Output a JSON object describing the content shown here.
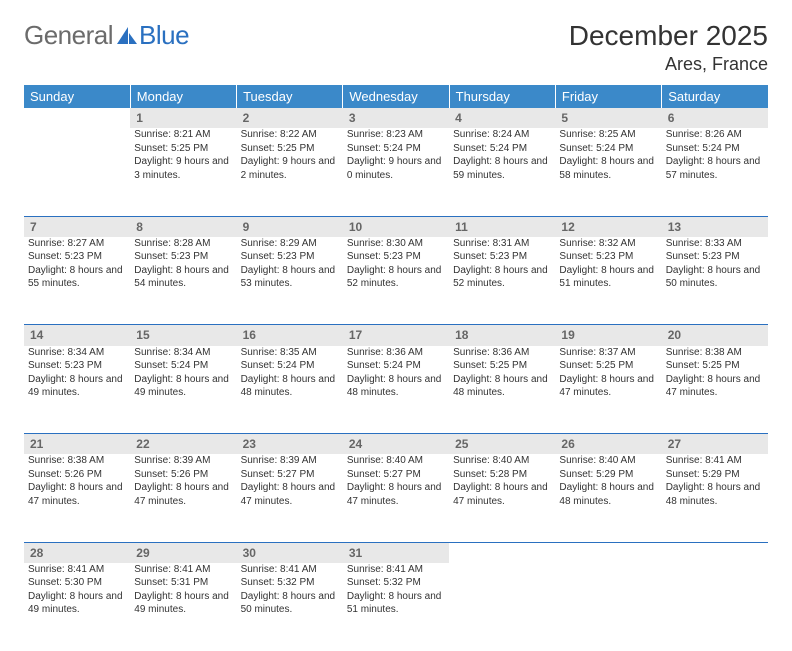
{
  "logo": {
    "textA": "General",
    "textB": "Blue"
  },
  "title": "December 2025",
  "location": "Ares, France",
  "header_bg": "#3b89c9",
  "day_bg": "#e8e8e8",
  "rule_color": "#2a70c0",
  "weekdays": [
    "Sunday",
    "Monday",
    "Tuesday",
    "Wednesday",
    "Thursday",
    "Friday",
    "Saturday"
  ],
  "weeks": [
    [
      null,
      {
        "n": "1",
        "sr": "8:21 AM",
        "ss": "5:25 PM",
        "dl": "9 hours and 3 minutes."
      },
      {
        "n": "2",
        "sr": "8:22 AM",
        "ss": "5:25 PM",
        "dl": "9 hours and 2 minutes."
      },
      {
        "n": "3",
        "sr": "8:23 AM",
        "ss": "5:24 PM",
        "dl": "9 hours and 0 minutes."
      },
      {
        "n": "4",
        "sr": "8:24 AM",
        "ss": "5:24 PM",
        "dl": "8 hours and 59 minutes."
      },
      {
        "n": "5",
        "sr": "8:25 AM",
        "ss": "5:24 PM",
        "dl": "8 hours and 58 minutes."
      },
      {
        "n": "6",
        "sr": "8:26 AM",
        "ss": "5:24 PM",
        "dl": "8 hours and 57 minutes."
      }
    ],
    [
      {
        "n": "7",
        "sr": "8:27 AM",
        "ss": "5:23 PM",
        "dl": "8 hours and 55 minutes."
      },
      {
        "n": "8",
        "sr": "8:28 AM",
        "ss": "5:23 PM",
        "dl": "8 hours and 54 minutes."
      },
      {
        "n": "9",
        "sr": "8:29 AM",
        "ss": "5:23 PM",
        "dl": "8 hours and 53 minutes."
      },
      {
        "n": "10",
        "sr": "8:30 AM",
        "ss": "5:23 PM",
        "dl": "8 hours and 52 minutes."
      },
      {
        "n": "11",
        "sr": "8:31 AM",
        "ss": "5:23 PM",
        "dl": "8 hours and 52 minutes."
      },
      {
        "n": "12",
        "sr": "8:32 AM",
        "ss": "5:23 PM",
        "dl": "8 hours and 51 minutes."
      },
      {
        "n": "13",
        "sr": "8:33 AM",
        "ss": "5:23 PM",
        "dl": "8 hours and 50 minutes."
      }
    ],
    [
      {
        "n": "14",
        "sr": "8:34 AM",
        "ss": "5:23 PM",
        "dl": "8 hours and 49 minutes."
      },
      {
        "n": "15",
        "sr": "8:34 AM",
        "ss": "5:24 PM",
        "dl": "8 hours and 49 minutes."
      },
      {
        "n": "16",
        "sr": "8:35 AM",
        "ss": "5:24 PM",
        "dl": "8 hours and 48 minutes."
      },
      {
        "n": "17",
        "sr": "8:36 AM",
        "ss": "5:24 PM",
        "dl": "8 hours and 48 minutes."
      },
      {
        "n": "18",
        "sr": "8:36 AM",
        "ss": "5:25 PM",
        "dl": "8 hours and 48 minutes."
      },
      {
        "n": "19",
        "sr": "8:37 AM",
        "ss": "5:25 PM",
        "dl": "8 hours and 47 minutes."
      },
      {
        "n": "20",
        "sr": "8:38 AM",
        "ss": "5:25 PM",
        "dl": "8 hours and 47 minutes."
      }
    ],
    [
      {
        "n": "21",
        "sr": "8:38 AM",
        "ss": "5:26 PM",
        "dl": "8 hours and 47 minutes."
      },
      {
        "n": "22",
        "sr": "8:39 AM",
        "ss": "5:26 PM",
        "dl": "8 hours and 47 minutes."
      },
      {
        "n": "23",
        "sr": "8:39 AM",
        "ss": "5:27 PM",
        "dl": "8 hours and 47 minutes."
      },
      {
        "n": "24",
        "sr": "8:40 AM",
        "ss": "5:27 PM",
        "dl": "8 hours and 47 minutes."
      },
      {
        "n": "25",
        "sr": "8:40 AM",
        "ss": "5:28 PM",
        "dl": "8 hours and 47 minutes."
      },
      {
        "n": "26",
        "sr": "8:40 AM",
        "ss": "5:29 PM",
        "dl": "8 hours and 48 minutes."
      },
      {
        "n": "27",
        "sr": "8:41 AM",
        "ss": "5:29 PM",
        "dl": "8 hours and 48 minutes."
      }
    ],
    [
      {
        "n": "28",
        "sr": "8:41 AM",
        "ss": "5:30 PM",
        "dl": "8 hours and 49 minutes."
      },
      {
        "n": "29",
        "sr": "8:41 AM",
        "ss": "5:31 PM",
        "dl": "8 hours and 49 minutes."
      },
      {
        "n": "30",
        "sr": "8:41 AM",
        "ss": "5:32 PM",
        "dl": "8 hours and 50 minutes."
      },
      {
        "n": "31",
        "sr": "8:41 AM",
        "ss": "5:32 PM",
        "dl": "8 hours and 51 minutes."
      },
      null,
      null,
      null
    ]
  ],
  "labels": {
    "sunrise": "Sunrise: ",
    "sunset": "Sunset: ",
    "daylight": "Daylight: "
  }
}
